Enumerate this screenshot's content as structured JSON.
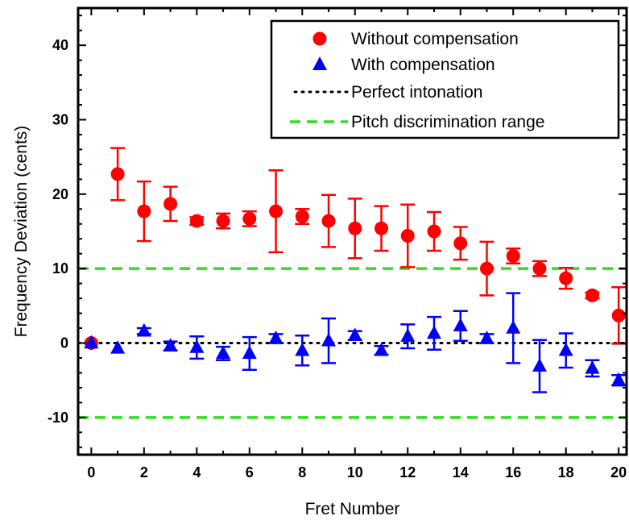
{
  "chart_data": {
    "type": "scatter",
    "xlabel": "Fret Number",
    "ylabel": "Frequency Deviation (cents)",
    "xlim": [
      -0.5,
      20.3
    ],
    "ylim": [
      -15,
      45
    ],
    "x_ticks": [
      0,
      2,
      4,
      6,
      8,
      10,
      12,
      14,
      16,
      18,
      20
    ],
    "y_ticks": [
      -10,
      0,
      10,
      20,
      30,
      40
    ],
    "grid": false,
    "legend_position": "top-right",
    "series": [
      {
        "name": "Without compensation",
        "marker": "circle",
        "color": "#ff0000",
        "errorbar_color": "#ff0000",
        "x": [
          0,
          1,
          2,
          3,
          4,
          5,
          6,
          7,
          8,
          9,
          10,
          11,
          12,
          13,
          14,
          15,
          16,
          17,
          18,
          19,
          20
        ],
        "y": [
          0,
          22.7,
          17.7,
          18.7,
          16.4,
          16.4,
          16.7,
          17.7,
          17.0,
          16.4,
          15.4,
          15.4,
          14.4,
          15.0,
          13.4,
          10.0,
          11.7,
          10.0,
          8.7,
          6.4,
          3.7
        ],
        "err": [
          0,
          3.5,
          4.0,
          2.3,
          0.5,
          1.0,
          1.0,
          5.5,
          1.0,
          3.5,
          4.0,
          3.0,
          4.2,
          2.6,
          2.2,
          3.6,
          1.0,
          1.0,
          1.4,
          0.4,
          3.8
        ]
      },
      {
        "name": "With compensation",
        "marker": "triangle",
        "color": "#0000ff",
        "errorbar_color": "#0000ff",
        "x": [
          0,
          1,
          2,
          3,
          4,
          5,
          6,
          7,
          8,
          9,
          10,
          11,
          12,
          13,
          14,
          15,
          16,
          17,
          18,
          19,
          20
        ],
        "y": [
          0,
          -0.7,
          1.6,
          -0.4,
          -0.6,
          -1.4,
          -1.4,
          0.6,
          -1.0,
          0.3,
          1.0,
          -1.0,
          0.9,
          1.3,
          2.3,
          0.6,
          2.0,
          -3.1,
          -1.0,
          -3.4,
          -5.0
        ],
        "err": [
          0,
          0,
          0.4,
          0.6,
          1.5,
          0.9,
          2.2,
          0.6,
          2.0,
          3.0,
          0.6,
          0.6,
          1.6,
          2.2,
          2.0,
          0.6,
          4.7,
          3.5,
          2.3,
          1.1,
          0.7
        ]
      },
      {
        "name": "Perfect intonation",
        "style": "dotted",
        "color": "#000000",
        "value": 0
      },
      {
        "name": "Pitch discrimination range",
        "style": "dashed",
        "color": "#33dd22",
        "values": [
          10,
          -10
        ]
      }
    ]
  }
}
